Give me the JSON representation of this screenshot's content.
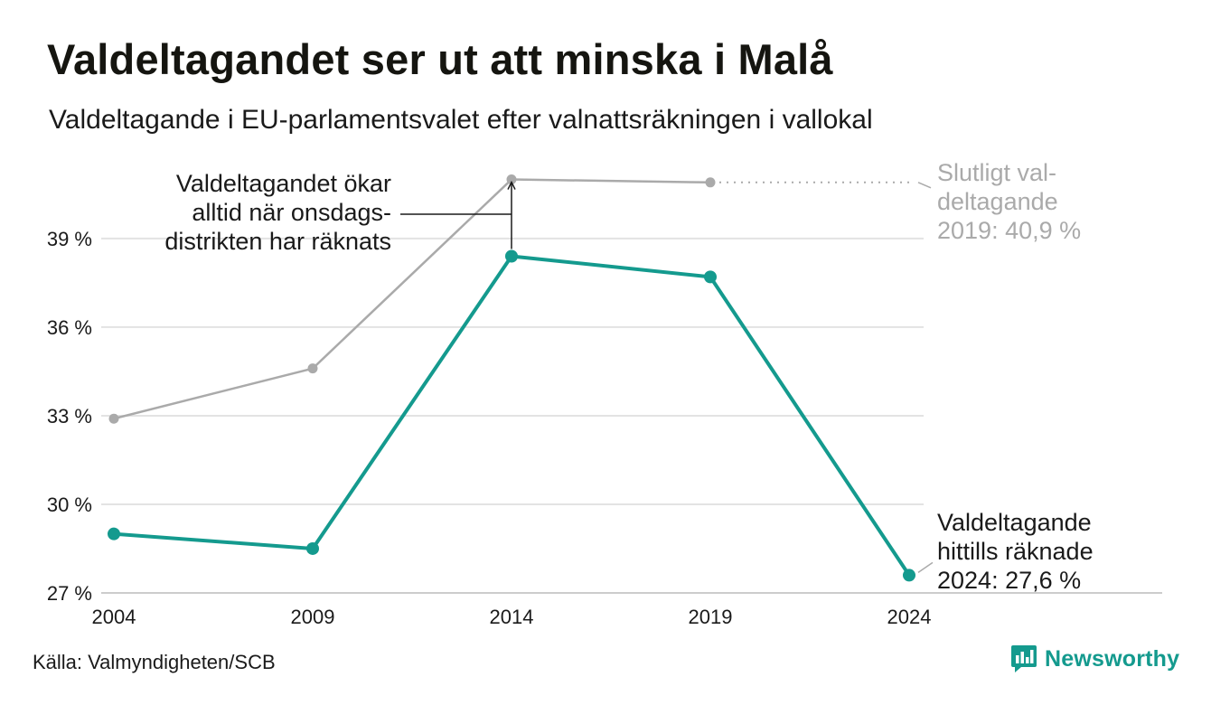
{
  "title": "Valdeltagandet ser ut att minska i Malå",
  "subtitle": "Valdeltagande i EU-parlamentsvalet efter valnattsräkningen i vallokal",
  "source": "Källa: Valmyndigheten/SCB",
  "brand": {
    "name": "Newsworthy",
    "icon": "newsworthy-logo-icon",
    "color": "#149a8e"
  },
  "chart_data": {
    "type": "line",
    "x": [
      2004,
      2009,
      2014,
      2019,
      2024
    ],
    "ylim": [
      27,
      41.2
    ],
    "yticks": [
      27,
      30,
      33,
      36,
      39
    ],
    "ytick_labels": [
      "27 %",
      "30 %",
      "33 %",
      "36 %",
      "39 %"
    ],
    "xtick_labels": [
      "2004",
      "2009",
      "2014",
      "2019",
      "2024"
    ],
    "grid": true,
    "series": [
      {
        "key": "final",
        "color": "#aaaaaa",
        "values": [
          32.9,
          34.6,
          41.0,
          40.9,
          null
        ]
      },
      {
        "key": "counted",
        "color": "#149a8e",
        "values": [
          29.0,
          28.5,
          38.4,
          37.7,
          27.6
        ]
      }
    ],
    "annotations": {
      "left": [
        "Valdeltagandet ökar",
        "alltid när onsdags-",
        "distrikten har räknats"
      ],
      "final": [
        "Slutligt val-",
        "deltagande",
        "2019: 40,9 %"
      ],
      "current": [
        "Valdeltagande",
        "hittills räknade",
        "2024: 27,6 %"
      ]
    }
  }
}
